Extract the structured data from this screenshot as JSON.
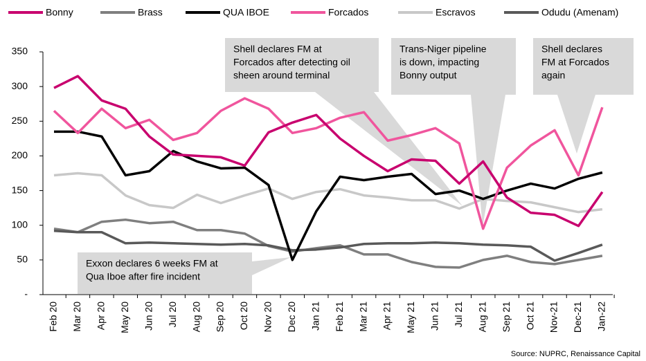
{
  "chart_data": {
    "type": "line",
    "categories": [
      "Feb 20",
      "Mar 20",
      "Apr 20",
      "May 20",
      "Jun 20",
      "Jul 20",
      "Aug 20",
      "Sep 20",
      "Oct 20",
      "Nov 20",
      "Dec 20",
      "Jan 21",
      "Feb 21",
      "Mar 21",
      "Apr 21",
      "May 21",
      "Jun 21",
      "Jul 21",
      "Aug 21",
      "Sep 21",
      "Oct 21",
      "Nov-21",
      "Dec-21",
      "Jan-22"
    ],
    "series": [
      {
        "name": "Bonny",
        "color": "#c8006e",
        "values": [
          298,
          315,
          280,
          268,
          228,
          202,
          200,
          198,
          186,
          234,
          248,
          259,
          225,
          200,
          178,
          195,
          193,
          160,
          192,
          140,
          118,
          115,
          99,
          148
        ]
      },
      {
        "name": "Brass",
        "color": "#7f7f7f",
        "values": [
          95,
          90,
          105,
          108,
          103,
          105,
          93,
          93,
          88,
          70,
          62,
          67,
          71,
          58,
          58,
          47,
          40,
          39,
          50,
          56,
          47,
          44,
          50,
          56
        ]
      },
      {
        "name": "QUA IBOE",
        "color": "#000000",
        "values": [
          235,
          235,
          228,
          172,
          178,
          207,
          192,
          182,
          183,
          158,
          50,
          120,
          170,
          165,
          170,
          174,
          145,
          150,
          138,
          150,
          160,
          153,
          167,
          176
        ]
      },
      {
        "name": "Forcados",
        "color": "#f0559d",
        "values": [
          265,
          233,
          268,
          240,
          252,
          223,
          233,
          265,
          283,
          268,
          233,
          240,
          255,
          263,
          222,
          230,
          240,
          218,
          95,
          183,
          215,
          237,
          172,
          270
        ]
      },
      {
        "name": "Escravos",
        "color": "#c8c8c8",
        "values": [
          172,
          175,
          172,
          143,
          129,
          125,
          144,
          132,
          143,
          153,
          138,
          148,
          152,
          143,
          140,
          136,
          136,
          124,
          138,
          135,
          133,
          126,
          119,
          123
        ]
      },
      {
        "name": "Odudu (Amenam)",
        "color": "#595959",
        "values": [
          92,
          90,
          90,
          74,
          75,
          74,
          73,
          72,
          73,
          71,
          64,
          65,
          68,
          73,
          74,
          74,
          75,
          74,
          72,
          71,
          69,
          49,
          60,
          72
        ]
      }
    ],
    "ylim": [
      0,
      350
    ],
    "yticks": [
      {
        "value": 0,
        "label": "-"
      },
      50,
      100,
      150,
      200,
      250,
      300,
      350
    ],
    "annotations": [
      [
        "Shell declares FM at",
        "Forcados after detecting oil",
        "sheen around terminal"
      ],
      [
        "Trans-Niger pipeline",
        "is down, impacting",
        "Bonny output"
      ],
      [
        "Shell declares",
        "FM at Forcados",
        "again"
      ],
      [
        "Exxon declares 6 weeks FM at",
        "Qua Iboe after fire incident"
      ]
    ],
    "source": "Source: NUPRC, Renaissance Capital"
  }
}
